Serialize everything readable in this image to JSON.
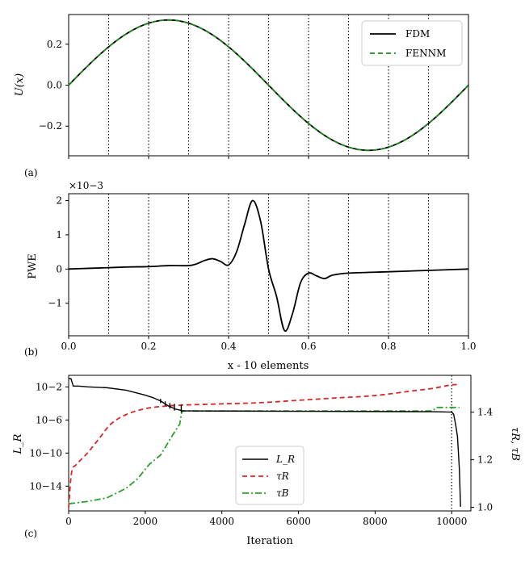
{
  "chart_data": [
    {
      "panel_label": "(a)",
      "type": "line",
      "xlim": [
        0,
        1
      ],
      "ylim": [
        -0.345,
        0.345
      ],
      "yticks": [
        -0.2,
        0.0,
        0.2
      ],
      "ytick_labels": [
        "−0.2",
        "0.0",
        "0.2"
      ],
      "ylabel": "U(x)",
      "vlines": [
        0.1,
        0.2,
        0.3,
        0.4,
        0.5,
        0.6,
        0.7,
        0.8,
        0.9
      ],
      "series": [
        {
          "name": "FDM",
          "function": "0.3183*sin(2*pi*x)",
          "color": "#000000",
          "style": "solid"
        },
        {
          "name": "FENNM",
          "function": "0.3183*sin(2*pi*x)",
          "color": "#1a8a1a",
          "style": "dashed"
        }
      ],
      "legend": [
        "FDM",
        "FENNM"
      ],
      "legend_position": "top-right"
    },
    {
      "panel_label": "(b)",
      "type": "line",
      "xlim": [
        0,
        1
      ],
      "ylim": [
        -1.95,
        2.2
      ],
      "yticks": [
        -1,
        0,
        1,
        2
      ],
      "ytick_labels": [
        "−1",
        "0",
        "1",
        "2"
      ],
      "xticks": [
        0.0,
        0.2,
        0.4,
        0.6,
        0.8,
        1.0
      ],
      "xtick_labels": [
        "0.0",
        "0.2",
        "0.4",
        "0.6",
        "0.8",
        "1.0"
      ],
      "ylabel": "PWE",
      "xlabel": "x - 10 elements",
      "y_scale_note": "×10−3",
      "vlines": [
        0.1,
        0.2,
        0.3,
        0.4,
        0.5,
        0.6,
        0.7,
        0.8,
        0.9
      ],
      "series": [
        {
          "name": "PWE",
          "color": "#000000",
          "x": [
            0.0,
            0.05,
            0.1,
            0.15,
            0.2,
            0.25,
            0.3,
            0.32,
            0.34,
            0.36,
            0.38,
            0.4,
            0.42,
            0.44,
            0.46,
            0.48,
            0.5,
            0.52,
            0.54,
            0.56,
            0.58,
            0.6,
            0.62,
            0.64,
            0.66,
            0.7,
            0.8,
            0.9,
            1.0
          ],
          "y": [
            0.0,
            0.02,
            0.04,
            0.06,
            0.07,
            0.1,
            0.1,
            0.15,
            0.25,
            0.3,
            0.22,
            0.12,
            0.5,
            1.3,
            2.0,
            1.4,
            0.0,
            -0.8,
            -1.8,
            -1.3,
            -0.4,
            -0.12,
            -0.2,
            -0.28,
            -0.18,
            -0.12,
            -0.08,
            -0.04,
            0.0
          ]
        }
      ]
    },
    {
      "panel_label": "(c)",
      "type": "line",
      "xlim": [
        0,
        10500
      ],
      "xticks": [
        0,
        2000,
        4000,
        6000,
        8000,
        10000
      ],
      "xtick_labels": [
        "0",
        "2000",
        "4000",
        "6000",
        "8000",
        "10000"
      ],
      "xlabel": "Iteration",
      "ylabel": "L_R",
      "ylim_log10": [
        -17,
        -0.6
      ],
      "yticks_log10": [
        -2,
        -6,
        -10,
        -14
      ],
      "ytick_labels": [
        "10−2",
        "10−6",
        "10−10",
        "10−14"
      ],
      "ylabel_right": "τR, τB",
      "ylim_right": [
        0.985,
        1.555
      ],
      "yticks_right": [
        1.0,
        1.2,
        1.4
      ],
      "ytick_labels_right": [
        "1.0",
        "1.2",
        "1.4"
      ],
      "vlines": [
        10000
      ],
      "legend_position": "lower-center",
      "series": [
        {
          "name": "L_R",
          "axis": "left",
          "scale": "log",
          "color": "#000000",
          "style": "solid",
          "x": [
            0,
            60,
            120,
            250,
            500,
            1000,
            1500,
            2000,
            2200,
            2400,
            2600,
            2800,
            2950,
            3000,
            3100,
            4000,
            6000,
            8000,
            9500,
            10000,
            10050,
            10100,
            10150,
            10200,
            10230
          ],
          "y": [
            -1.0,
            -1.0,
            -1.9,
            -1.9,
            -2.0,
            -2.1,
            -2.4,
            -3.0,
            -3.3,
            -3.7,
            -4.3,
            -4.7,
            -4.85,
            -4.9,
            -4.9,
            -4.92,
            -4.95,
            -4.98,
            -5.0,
            -5.05,
            -5.3,
            -6.5,
            -8.0,
            -12.0,
            -16.5
          ],
          "spikes": [
            {
              "x": 2400,
              "y": -3.7
            },
            {
              "x": 2520,
              "y": -4.0
            },
            {
              "x": 2640,
              "y": -4.2
            },
            {
              "x": 2760,
              "y": -4.3
            },
            {
              "x": 2940,
              "y": -4.4
            }
          ]
        },
        {
          "name": "τR",
          "axis": "right",
          "color": "#d62728",
          "style": "dashed",
          "x": [
            0,
            80,
            200,
            500,
            800,
            1100,
            1500,
            2000,
            2500,
            3000,
            4000,
            5000,
            6000,
            7000,
            8000,
            9000,
            9500,
            10000,
            10200
          ],
          "y": [
            1.0,
            1.15,
            1.18,
            1.23,
            1.29,
            1.35,
            1.39,
            1.415,
            1.425,
            1.43,
            1.435,
            1.44,
            1.45,
            1.46,
            1.47,
            1.49,
            1.5,
            1.515,
            1.515
          ]
        },
        {
          "name": "τB",
          "axis": "right",
          "color": "#2ca02c",
          "style": "dashdot",
          "x": [
            0,
            500,
            1000,
            1500,
            1800,
            2100,
            2400,
            2700,
            2900,
            2950,
            3000,
            4000,
            6000,
            8000,
            9500,
            9600,
            10000,
            10200
          ],
          "y": [
            1.015,
            1.025,
            1.04,
            1.08,
            1.12,
            1.18,
            1.22,
            1.3,
            1.35,
            1.4,
            1.405,
            1.405,
            1.405,
            1.405,
            1.405,
            1.42,
            1.42,
            1.42
          ]
        }
      ],
      "legend": [
        "L_R",
        "τR",
        "τB"
      ]
    }
  ]
}
